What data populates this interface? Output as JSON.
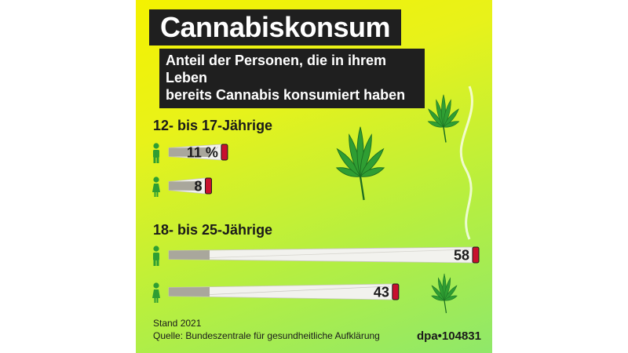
{
  "title": "Cannabiskonsum",
  "subtitle_line1": "Anteil der Personen, die in ihrem Leben",
  "subtitle_line2": "bereits Cannabis konsumiert haben",
  "footer": {
    "stand": "Stand 2021",
    "source": "Quelle: Bundeszentrale für gesundheitliche Aufklärung",
    "id": "dpa•104831"
  },
  "colors": {
    "background_top": "#f4f200",
    "background_bottom": "#8fe86a",
    "title_box": "#1f1f1f",
    "joint_paper": "#f2f2ee",
    "joint_tip": "#a9a79c",
    "ember": "#c8102e",
    "leaf": "#2f9e33",
    "icon": "#2f9e33"
  },
  "chart_data": {
    "type": "bar",
    "title": "Cannabiskonsum",
    "subtitle": "Anteil der Personen, die in ihrem Leben bereits Cannabis konsumiert haben",
    "unit": "%",
    "series": [
      "männlich",
      "weiblich"
    ],
    "groups": [
      {
        "label": "12- bis 17-Jährige",
        "bars": [
          {
            "gender": "male-icon",
            "value": 11,
            "label": "11 %"
          },
          {
            "gender": "female-icon",
            "value": 8,
            "label": "8"
          }
        ]
      },
      {
        "label": "18- bis 25-Jährige",
        "bars": [
          {
            "gender": "male-icon",
            "value": 58,
            "label": "58"
          },
          {
            "gender": "female-icon",
            "value": 43,
            "label": "43"
          }
        ]
      }
    ],
    "xlim": [
      0,
      58
    ]
  }
}
